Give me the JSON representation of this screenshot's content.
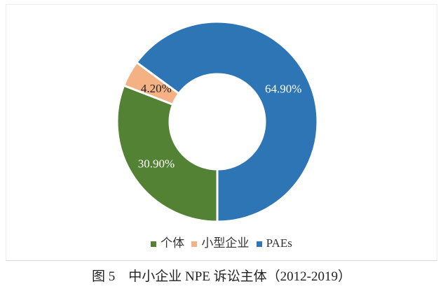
{
  "chart_data": {
    "type": "pie",
    "donut": true,
    "title": "",
    "categories": [
      "个体",
      "小型企业",
      "PAEs"
    ],
    "values": [
      30.9,
      4.2,
      64.9
    ],
    "labels": [
      "30.90%",
      "4.20%",
      "64.90%"
    ],
    "colors": [
      "#548235",
      "#f4b183",
      "#2e75b6"
    ],
    "label_colors": [
      "#ffffff",
      "#222222",
      "#ffffff"
    ],
    "start_angle_deg": 180,
    "direction": "clockwise",
    "legend_position": "bottom"
  },
  "caption": "图 5　中小企业 NPE 诉讼主体（2012-2019）"
}
